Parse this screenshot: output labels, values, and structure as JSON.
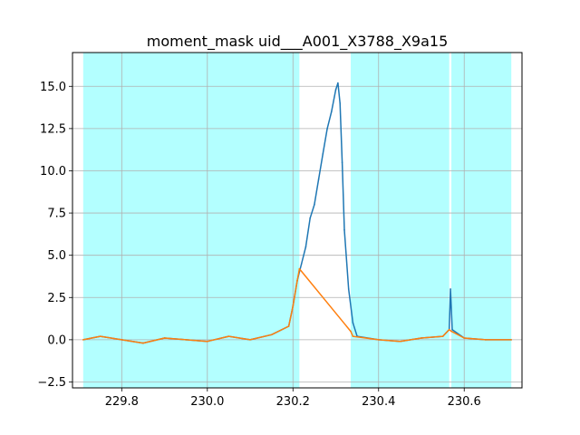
{
  "chart_data": {
    "type": "line",
    "title": "moment_mask uid___A001_X3788_X9a15",
    "xlabel": "",
    "ylabel": "",
    "xlim": [
      229.685,
      230.735
    ],
    "ylim": [
      -2.85,
      17.0
    ],
    "grid": true,
    "x_ticks": [
      {
        "value": 229.8,
        "label": "229.8"
      },
      {
        "value": 230.0,
        "label": "230.0"
      },
      {
        "value": 230.2,
        "label": "230.2"
      },
      {
        "value": 230.4,
        "label": "230.4"
      },
      {
        "value": 230.6,
        "label": "230.6"
      }
    ],
    "y_ticks": [
      {
        "value": -2.5,
        "label": "−2.5"
      },
      {
        "value": 0.0,
        "label": "0.0"
      },
      {
        "value": 2.5,
        "label": "2.5"
      },
      {
        "value": 5.0,
        "label": "5.0"
      },
      {
        "value": 7.5,
        "label": "7.5"
      },
      {
        "value": 10.0,
        "label": "10.0"
      },
      {
        "value": 12.5,
        "label": "12.5"
      },
      {
        "value": 15.0,
        "label": "15.0"
      }
    ],
    "shaded_regions": [
      {
        "x0": 229.71,
        "x1": 230.215
      },
      {
        "x0": 230.335,
        "x1": 230.565
      },
      {
        "x0": 230.57,
        "x1": 230.71
      }
    ],
    "shade_color": "#b3ffff",
    "series": [
      {
        "color": "#1f77b4",
        "x": [
          229.71,
          229.75,
          229.8,
          229.85,
          229.9,
          229.95,
          230.0,
          230.05,
          230.1,
          230.15,
          230.19,
          230.2,
          230.21,
          230.22,
          230.23,
          230.24,
          230.25,
          230.26,
          230.27,
          230.28,
          230.29,
          230.3,
          230.305,
          230.31,
          230.315,
          230.32,
          230.33,
          230.34,
          230.35,
          230.4,
          230.45,
          230.5,
          230.55,
          230.565,
          230.568,
          230.572,
          230.6,
          230.65,
          230.71
        ],
        "y": [
          0.0,
          0.2,
          0.0,
          -0.2,
          0.1,
          0.0,
          -0.1,
          0.2,
          0.0,
          0.3,
          0.8,
          2.0,
          3.5,
          4.5,
          5.5,
          7.2,
          8.0,
          9.5,
          11.0,
          12.5,
          13.5,
          14.8,
          15.2,
          14.0,
          10.5,
          6.5,
          3.0,
          1.0,
          0.2,
          0.0,
          -0.1,
          0.1,
          0.2,
          0.6,
          3.0,
          0.6,
          0.1,
          0.0,
          0.0
        ]
      },
      {
        "color": "#ff7f0e",
        "x": [
          229.71,
          229.75,
          229.8,
          229.85,
          229.9,
          229.95,
          230.0,
          230.05,
          230.1,
          230.15,
          230.19,
          230.2,
          230.21,
          230.215,
          230.335,
          230.34,
          230.4,
          230.45,
          230.5,
          230.55,
          230.565,
          230.57,
          230.6,
          230.65,
          230.71
        ],
        "y": [
          0.0,
          0.2,
          0.0,
          -0.2,
          0.1,
          0.0,
          -0.1,
          0.2,
          0.0,
          0.3,
          0.8,
          2.0,
          3.5,
          4.2,
          0.5,
          0.2,
          0.0,
          -0.1,
          0.1,
          0.2,
          0.6,
          0.5,
          0.1,
          0.0,
          0.0
        ]
      }
    ]
  }
}
